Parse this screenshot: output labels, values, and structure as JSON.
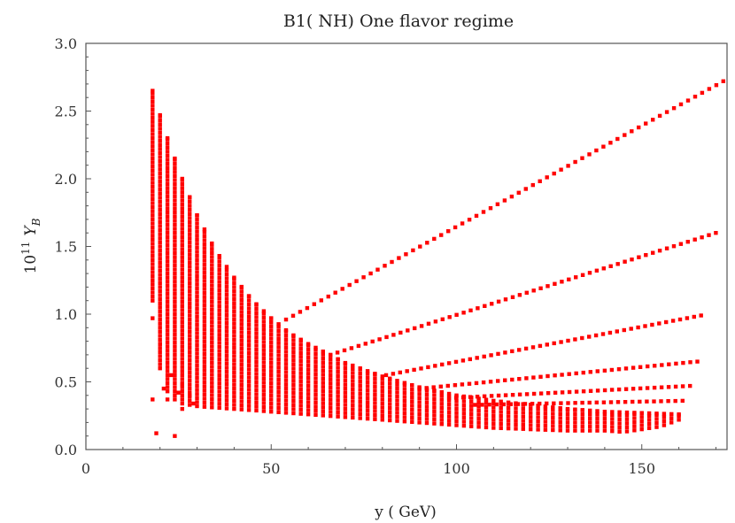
{
  "chart_data": {
    "type": "scatter",
    "title": "B1( NH)  One flavor regime",
    "xlabel": "y ( GeV)",
    "ylabel": "10",
    "ylabel_sup": "11",
    "ylabel_var": "Y",
    "ylabel_sub": "B",
    "xlim": [
      0,
      173
    ],
    "ylim": [
      0,
      3.0
    ],
    "x_ticks": [
      0,
      50,
      100,
      150
    ],
    "x_tick_labels": [
      "0",
      "50",
      "100",
      "150"
    ],
    "y_ticks": [
      0,
      0.5,
      1.0,
      1.5,
      2.0,
      2.5,
      3.0
    ],
    "y_tick_labels": [
      "0.0",
      "0.5",
      "1.0",
      "1.5",
      "2.0",
      "2.5",
      "3.0"
    ],
    "grid": false,
    "marker_color": "#ff0000",
    "band": {
      "x_start": 18,
      "x_end": 160,
      "x_step": 2,
      "top": [
        [
          18,
          2.65
        ],
        [
          20,
          2.47
        ],
        [
          22,
          2.3
        ],
        [
          24,
          2.15
        ],
        [
          26,
          2.0
        ],
        [
          30,
          1.73
        ],
        [
          35,
          1.47
        ],
        [
          40,
          1.27
        ],
        [
          45,
          1.1
        ],
        [
          50,
          0.97
        ],
        [
          55,
          0.86
        ],
        [
          60,
          0.78
        ],
        [
          65,
          0.71
        ],
        [
          70,
          0.64
        ],
        [
          75,
          0.59
        ],
        [
          80,
          0.54
        ],
        [
          85,
          0.5
        ],
        [
          90,
          0.46
        ],
        [
          100,
          0.4
        ],
        [
          110,
          0.36
        ],
        [
          120,
          0.33
        ],
        [
          130,
          0.3
        ],
        [
          140,
          0.28
        ],
        [
          150,
          0.27
        ],
        [
          160,
          0.26
        ]
      ],
      "bottom": [
        [
          18,
          1.1
        ],
        [
          20,
          0.6
        ],
        [
          22,
          0.43
        ],
        [
          24,
          0.37
        ],
        [
          26,
          0.34
        ],
        [
          30,
          0.32
        ],
        [
          40,
          0.3
        ],
        [
          50,
          0.28
        ],
        [
          60,
          0.26
        ],
        [
          70,
          0.24
        ],
        [
          80,
          0.22
        ],
        [
          90,
          0.2
        ],
        [
          100,
          0.18
        ],
        [
          110,
          0.16
        ],
        [
          120,
          0.15
        ],
        [
          130,
          0.14
        ],
        [
          140,
          0.14
        ],
        [
          145,
          0.13
        ],
        [
          150,
          0.15
        ],
        [
          155,
          0.17
        ],
        [
          160,
          0.22
        ]
      ]
    },
    "series": [
      {
        "x_range": [
          54,
          172
        ],
        "y_range": [
          0.96,
          2.72
        ]
      },
      {
        "x_range": [
          66,
          170
        ],
        "y_range": [
          0.7,
          1.6
        ]
      },
      {
        "x_range": [
          81,
          166
        ],
        "y_range": [
          0.55,
          0.99
        ]
      },
      {
        "x_range": [
          90,
          165
        ],
        "y_range": [
          0.45,
          0.65
        ]
      },
      {
        "x_range": [
          98,
          163
        ],
        "y_range": [
          0.38,
          0.47
        ]
      },
      {
        "x_range": [
          105,
          161
        ],
        "y_range": [
          0.33,
          0.36
        ]
      }
    ],
    "outlier_points": [
      [
        18,
        0.97
      ],
      [
        18,
        0.37
      ],
      [
        19,
        0.12
      ],
      [
        20,
        0.78
      ],
      [
        21,
        0.45
      ],
      [
        22,
        0.37
      ],
      [
        23,
        0.55
      ],
      [
        24,
        0.1
      ],
      [
        25,
        0.42
      ],
      [
        26,
        0.48
      ],
      [
        26,
        0.3
      ],
      [
        28,
        0.4
      ],
      [
        29,
        0.34
      ]
    ]
  }
}
